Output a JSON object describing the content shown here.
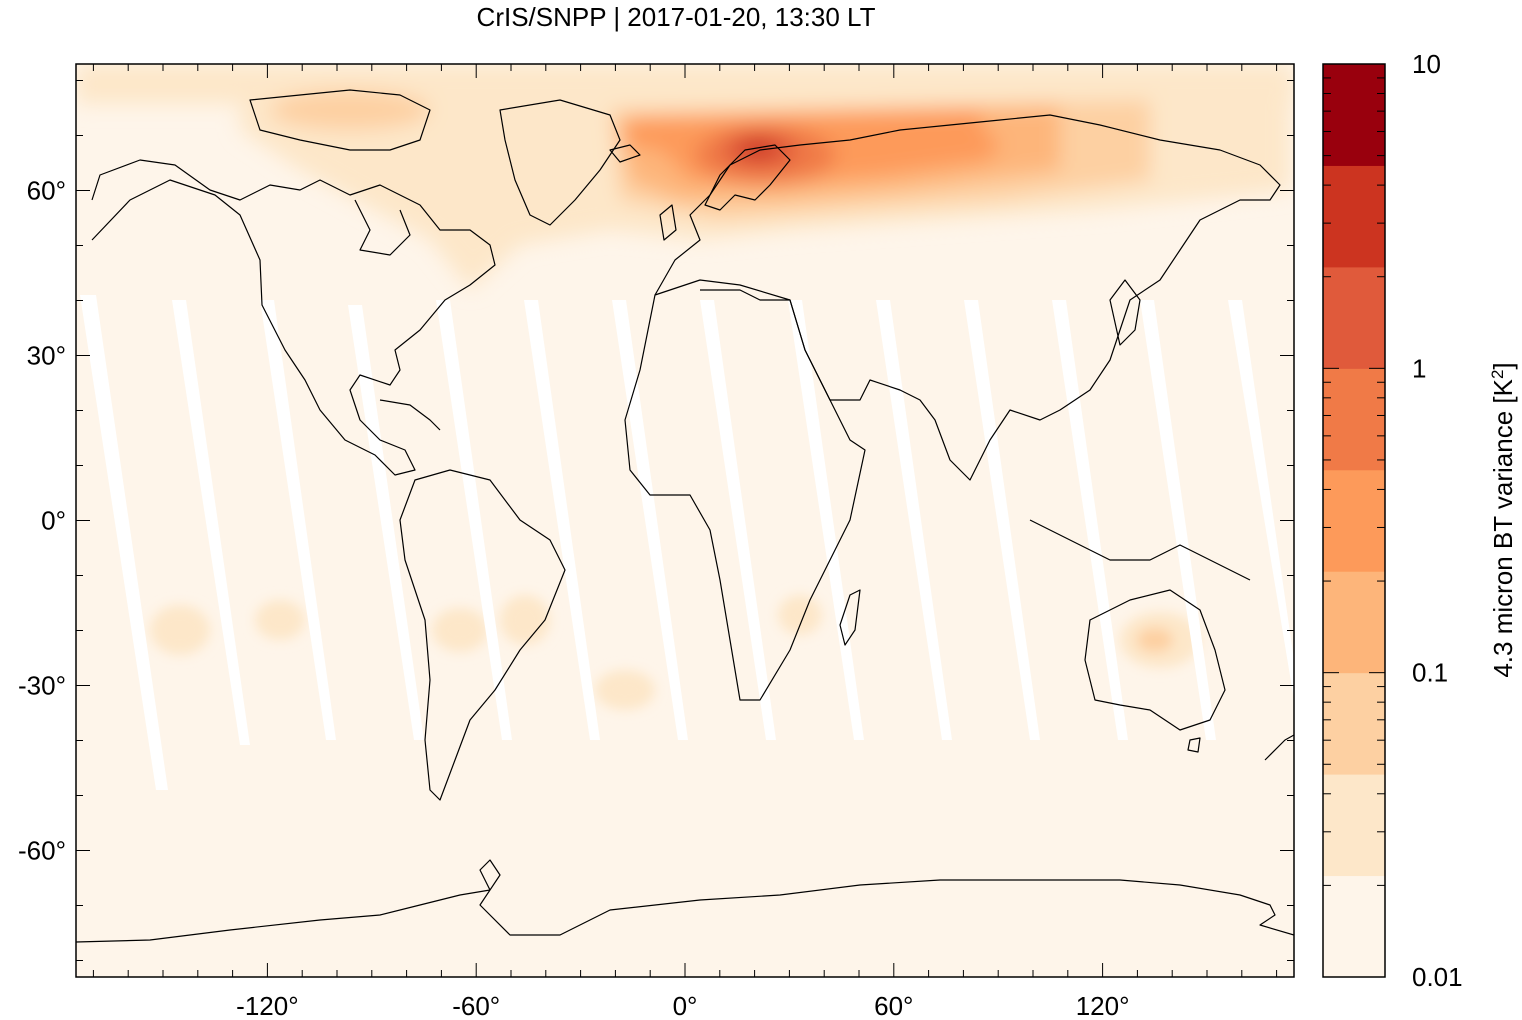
{
  "title": "CrIS/SNPP | 2017-01-20, 13:30 LT",
  "map": {
    "projection": "equirectangular",
    "lon_range": [
      -175,
      175
    ],
    "lat_range": [
      -83,
      83
    ],
    "x_ticks": [
      {
        "value": -120,
        "label": "-120°"
      },
      {
        "value": -60,
        "label": "-60°"
      },
      {
        "value": 0,
        "label": "0°"
      },
      {
        "value": 60,
        "label": "60°"
      },
      {
        "value": 120,
        "label": "120°"
      }
    ],
    "y_ticks": [
      {
        "value": 60,
        "label": "60°"
      },
      {
        "value": 30,
        "label": "30°"
      },
      {
        "value": 0,
        "label": "0°"
      },
      {
        "value": -30,
        "label": "-30°"
      },
      {
        "value": -60,
        "label": "-60°"
      }
    ],
    "background_color": "#fef5ea",
    "gap_color": "#ffffff",
    "coastline_color": "#000000"
  },
  "colorbar": {
    "label_main": "4.3 micron BT variance [K",
    "label_sup": "2",
    "label_end": "]",
    "scale": "log",
    "range": [
      0.01,
      10
    ],
    "tick_labels": [
      {
        "value": 10,
        "label": "10"
      },
      {
        "value": 1,
        "label": "1"
      },
      {
        "value": 0.1,
        "label": "0.1"
      },
      {
        "value": 0.01,
        "label": "0.01"
      }
    ],
    "colors": [
      "#fef5ea",
      "#fde7c9",
      "#fdd0a2",
      "#fdb57a",
      "#fd9a5a",
      "#f07a47",
      "#e05a3b",
      "#cc3420",
      "#99000d"
    ]
  }
}
